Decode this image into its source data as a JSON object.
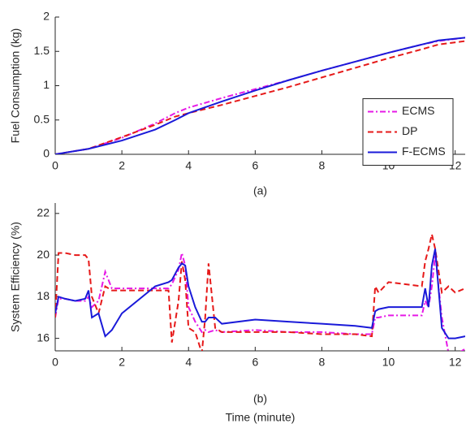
{
  "chart_data": [
    {
      "type": "line",
      "x_label": "(a)",
      "y_label": "Fuel Consumption (kg)",
      "x": [
        0,
        1,
        2,
        3,
        3.6,
        4,
        5,
        6,
        7,
        8,
        9,
        10,
        11,
        11.5,
        12.3
      ],
      "series": [
        {
          "name": "ECMS",
          "color": "#e619e6",
          "dash": "dashdot",
          "values": [
            0,
            0.08,
            0.24,
            0.45,
            0.6,
            0.68,
            0.82,
            0.95,
            1.08,
            1.22,
            1.35,
            1.48,
            1.6,
            1.65,
            1.7
          ]
        },
        {
          "name": "DP",
          "color": "#e61919",
          "dash": "dashed",
          "values": [
            0,
            0.08,
            0.25,
            0.43,
            0.55,
            0.6,
            0.72,
            0.85,
            0.98,
            1.12,
            1.26,
            1.4,
            1.53,
            1.6,
            1.65
          ]
        },
        {
          "name": "F-ECMS",
          "color": "#1a1ad9",
          "dash": "solid",
          "values": [
            0,
            0.08,
            0.2,
            0.36,
            0.5,
            0.6,
            0.77,
            0.93,
            1.08,
            1.22,
            1.35,
            1.48,
            1.6,
            1.66,
            1.7
          ]
        }
      ],
      "xlim": [
        0,
        12.3
      ],
      "xticks": [
        0,
        2,
        4,
        6,
        8,
        10,
        12
      ],
      "ylim": [
        0,
        2
      ],
      "yticks": [
        0,
        0.5,
        1,
        1.5,
        2
      ],
      "legend": "right"
    },
    {
      "type": "line",
      "x_label": "(b)",
      "x_title": "Time (minute)",
      "y_label": "System Efficiency (%)",
      "x": [
        0,
        0.1,
        0.3,
        0.6,
        0.9,
        1,
        1.1,
        1.3,
        1.5,
        1.7,
        2,
        3,
        3.4,
        3.5,
        3.7,
        3.8,
        3.9,
        4,
        4.2,
        4.4,
        4.5,
        4.6,
        4.8,
        5,
        6,
        7,
        8,
        9,
        9.5,
        9.6,
        9.7,
        10,
        11,
        11.1,
        11.2,
        11.3,
        11.4,
        11.6,
        11.8,
        12,
        12.3
      ],
      "series": [
        {
          "name": "ECMS",
          "color": "#e619e6",
          "dash": "dashdot",
          "values": [
            17,
            17.9,
            17.9,
            17.8,
            17.8,
            18,
            17.5,
            17.8,
            19.2,
            18.4,
            18.4,
            18.4,
            18.4,
            18.6,
            19.3,
            20.1,
            19.5,
            17.5,
            16.8,
            16.3,
            16.4,
            16.3,
            16.4,
            16.3,
            16.4,
            16.3,
            16.3,
            16.2,
            16.2,
            17,
            17,
            17.1,
            17.1,
            17.8,
            17.5,
            18.5,
            20,
            17,
            15.3,
            15.2,
            15.5
          ]
        },
        {
          "name": "DP",
          "color": "#e61919",
          "dash": "dashed",
          "values": [
            17,
            20.1,
            20.1,
            20,
            20,
            19.8,
            18,
            17.2,
            18.5,
            18.3,
            18.3,
            18.3,
            18.3,
            15.8,
            17.8,
            19.7,
            18.8,
            16.5,
            16.3,
            15.3,
            17,
            19.6,
            16.5,
            16.3,
            16.3,
            16.3,
            16.2,
            16.2,
            16.1,
            18.5,
            18.2,
            18.7,
            18.5,
            19.7,
            20.3,
            21,
            20.3,
            18.2,
            18.5,
            18.2,
            18.4
          ]
        },
        {
          "name": "F-ECMS",
          "color": "#1a1ad9",
          "dash": "solid",
          "values": [
            17.2,
            18,
            17.9,
            17.8,
            17.9,
            18.3,
            17,
            17.2,
            16.1,
            16.4,
            17.2,
            18.5,
            18.7,
            18.8,
            19.4,
            19.6,
            19.5,
            18.5,
            17.5,
            16.8,
            16.8,
            17,
            17,
            16.7,
            16.9,
            16.8,
            16.7,
            16.6,
            16.5,
            17.3,
            17.4,
            17.5,
            17.5,
            18.4,
            17.5,
            19.5,
            20.3,
            16.5,
            16,
            16,
            16.1
          ]
        }
      ],
      "xlim": [
        0,
        12.3
      ],
      "xticks": [
        0,
        2,
        4,
        6,
        8,
        10,
        12
      ],
      "ylim": [
        15.4,
        22.5
      ],
      "yticks": [
        16,
        18,
        20,
        22
      ]
    }
  ]
}
